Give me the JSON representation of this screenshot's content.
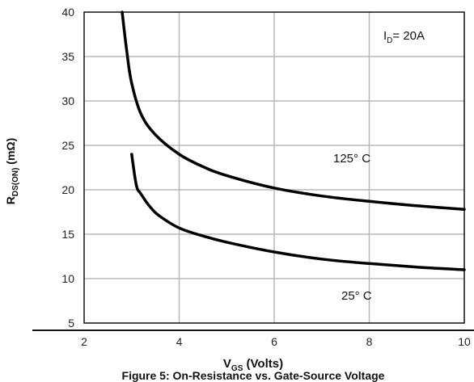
{
  "chart_data": {
    "type": "line",
    "title": "",
    "caption": "Figure 5: On-Resistance vs. Gate-Source Voltage",
    "xlabel": {
      "main": "V",
      "sub": "GS",
      "rest": " (Volts)"
    },
    "ylabel": {
      "main": "R",
      "sub": "DS(ON)",
      "rest": " (mΩ)"
    },
    "xlim": [
      2,
      10
    ],
    "ylim": [
      5,
      40
    ],
    "xticks": [
      2,
      4,
      6,
      8,
      10
    ],
    "yticks": [
      5,
      10,
      15,
      20,
      25,
      30,
      35,
      40
    ],
    "grid": true,
    "annotations": {
      "condition": {
        "main": "I",
        "sub": "D",
        "rest": "= 20A"
      },
      "hot_label": "125° C",
      "cold_label": "25° C"
    },
    "series": [
      {
        "name": "125° C",
        "x": [
          2.8,
          2.9,
          3.0,
          3.2,
          3.5,
          4.0,
          4.5,
          5.0,
          6.0,
          7.0,
          8.0,
          9.0,
          10.0
        ],
        "y": [
          40,
          35.5,
          32,
          28.5,
          26.2,
          24.0,
          22.6,
          21.6,
          20.2,
          19.3,
          18.7,
          18.2,
          17.8
        ]
      },
      {
        "name": "25° C",
        "x": [
          3.0,
          3.1,
          3.2,
          3.4,
          3.6,
          4.0,
          4.5,
          5.0,
          6.0,
          7.0,
          8.0,
          9.0,
          10.0
        ],
        "y": [
          24,
          20.5,
          19.5,
          18.0,
          17.0,
          15.7,
          14.8,
          14.1,
          13.0,
          12.2,
          11.7,
          11.3,
          11.0
        ]
      }
    ],
    "colors": {
      "curve": "#000000",
      "grid": "#b8b8b8",
      "axis": "#111111"
    }
  }
}
